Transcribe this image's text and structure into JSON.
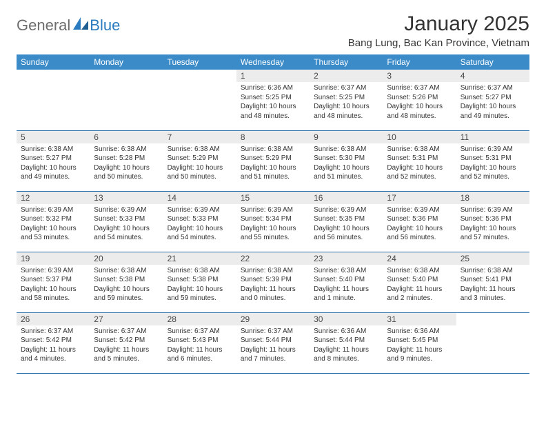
{
  "logo": {
    "general": "General",
    "blue": "Blue"
  },
  "title": "January 2025",
  "location": "Bang Lung, Bac Kan Province, Vietnam",
  "colors": {
    "header_bg": "#3b8bc8",
    "header_text": "#ffffff",
    "row_border": "#2f6ea8",
    "daynum_bg": "#ececec",
    "daynum_text": "#474747",
    "body_text": "#333333",
    "logo_gray": "#6d6d6d",
    "logo_blue": "#2a7bbf",
    "page_bg": "#ffffff"
  },
  "fonts": {
    "title_size": 30,
    "location_size": 15,
    "dayhead_size": 12,
    "daynum_size": 12,
    "body_size": 10
  },
  "day_headers": [
    "Sunday",
    "Monday",
    "Tuesday",
    "Wednesday",
    "Thursday",
    "Friday",
    "Saturday"
  ],
  "weeks": [
    [
      {
        "n": "",
        "sr": "",
        "ss": "",
        "dl": ""
      },
      {
        "n": "",
        "sr": "",
        "ss": "",
        "dl": ""
      },
      {
        "n": "",
        "sr": "",
        "ss": "",
        "dl": ""
      },
      {
        "n": "1",
        "sr": "Sunrise: 6:36 AM",
        "ss": "Sunset: 5:25 PM",
        "dl": "Daylight: 10 hours and 48 minutes."
      },
      {
        "n": "2",
        "sr": "Sunrise: 6:37 AM",
        "ss": "Sunset: 5:25 PM",
        "dl": "Daylight: 10 hours and 48 minutes."
      },
      {
        "n": "3",
        "sr": "Sunrise: 6:37 AM",
        "ss": "Sunset: 5:26 PM",
        "dl": "Daylight: 10 hours and 48 minutes."
      },
      {
        "n": "4",
        "sr": "Sunrise: 6:37 AM",
        "ss": "Sunset: 5:27 PM",
        "dl": "Daylight: 10 hours and 49 minutes."
      }
    ],
    [
      {
        "n": "5",
        "sr": "Sunrise: 6:38 AM",
        "ss": "Sunset: 5:27 PM",
        "dl": "Daylight: 10 hours and 49 minutes."
      },
      {
        "n": "6",
        "sr": "Sunrise: 6:38 AM",
        "ss": "Sunset: 5:28 PM",
        "dl": "Daylight: 10 hours and 50 minutes."
      },
      {
        "n": "7",
        "sr": "Sunrise: 6:38 AM",
        "ss": "Sunset: 5:29 PM",
        "dl": "Daylight: 10 hours and 50 minutes."
      },
      {
        "n": "8",
        "sr": "Sunrise: 6:38 AM",
        "ss": "Sunset: 5:29 PM",
        "dl": "Daylight: 10 hours and 51 minutes."
      },
      {
        "n": "9",
        "sr": "Sunrise: 6:38 AM",
        "ss": "Sunset: 5:30 PM",
        "dl": "Daylight: 10 hours and 51 minutes."
      },
      {
        "n": "10",
        "sr": "Sunrise: 6:38 AM",
        "ss": "Sunset: 5:31 PM",
        "dl": "Daylight: 10 hours and 52 minutes."
      },
      {
        "n": "11",
        "sr": "Sunrise: 6:39 AM",
        "ss": "Sunset: 5:31 PM",
        "dl": "Daylight: 10 hours and 52 minutes."
      }
    ],
    [
      {
        "n": "12",
        "sr": "Sunrise: 6:39 AM",
        "ss": "Sunset: 5:32 PM",
        "dl": "Daylight: 10 hours and 53 minutes."
      },
      {
        "n": "13",
        "sr": "Sunrise: 6:39 AM",
        "ss": "Sunset: 5:33 PM",
        "dl": "Daylight: 10 hours and 54 minutes."
      },
      {
        "n": "14",
        "sr": "Sunrise: 6:39 AM",
        "ss": "Sunset: 5:33 PM",
        "dl": "Daylight: 10 hours and 54 minutes."
      },
      {
        "n": "15",
        "sr": "Sunrise: 6:39 AM",
        "ss": "Sunset: 5:34 PM",
        "dl": "Daylight: 10 hours and 55 minutes."
      },
      {
        "n": "16",
        "sr": "Sunrise: 6:39 AM",
        "ss": "Sunset: 5:35 PM",
        "dl": "Daylight: 10 hours and 56 minutes."
      },
      {
        "n": "17",
        "sr": "Sunrise: 6:39 AM",
        "ss": "Sunset: 5:36 PM",
        "dl": "Daylight: 10 hours and 56 minutes."
      },
      {
        "n": "18",
        "sr": "Sunrise: 6:39 AM",
        "ss": "Sunset: 5:36 PM",
        "dl": "Daylight: 10 hours and 57 minutes."
      }
    ],
    [
      {
        "n": "19",
        "sr": "Sunrise: 6:39 AM",
        "ss": "Sunset: 5:37 PM",
        "dl": "Daylight: 10 hours and 58 minutes."
      },
      {
        "n": "20",
        "sr": "Sunrise: 6:38 AM",
        "ss": "Sunset: 5:38 PM",
        "dl": "Daylight: 10 hours and 59 minutes."
      },
      {
        "n": "21",
        "sr": "Sunrise: 6:38 AM",
        "ss": "Sunset: 5:38 PM",
        "dl": "Daylight: 10 hours and 59 minutes."
      },
      {
        "n": "22",
        "sr": "Sunrise: 6:38 AM",
        "ss": "Sunset: 5:39 PM",
        "dl": "Daylight: 11 hours and 0 minutes."
      },
      {
        "n": "23",
        "sr": "Sunrise: 6:38 AM",
        "ss": "Sunset: 5:40 PM",
        "dl": "Daylight: 11 hours and 1 minute."
      },
      {
        "n": "24",
        "sr": "Sunrise: 6:38 AM",
        "ss": "Sunset: 5:40 PM",
        "dl": "Daylight: 11 hours and 2 minutes."
      },
      {
        "n": "25",
        "sr": "Sunrise: 6:38 AM",
        "ss": "Sunset: 5:41 PM",
        "dl": "Daylight: 11 hours and 3 minutes."
      }
    ],
    [
      {
        "n": "26",
        "sr": "Sunrise: 6:37 AM",
        "ss": "Sunset: 5:42 PM",
        "dl": "Daylight: 11 hours and 4 minutes."
      },
      {
        "n": "27",
        "sr": "Sunrise: 6:37 AM",
        "ss": "Sunset: 5:42 PM",
        "dl": "Daylight: 11 hours and 5 minutes."
      },
      {
        "n": "28",
        "sr": "Sunrise: 6:37 AM",
        "ss": "Sunset: 5:43 PM",
        "dl": "Daylight: 11 hours and 6 minutes."
      },
      {
        "n": "29",
        "sr": "Sunrise: 6:37 AM",
        "ss": "Sunset: 5:44 PM",
        "dl": "Daylight: 11 hours and 7 minutes."
      },
      {
        "n": "30",
        "sr": "Sunrise: 6:36 AM",
        "ss": "Sunset: 5:44 PM",
        "dl": "Daylight: 11 hours and 8 minutes."
      },
      {
        "n": "31",
        "sr": "Sunrise: 6:36 AM",
        "ss": "Sunset: 5:45 PM",
        "dl": "Daylight: 11 hours and 9 minutes."
      },
      {
        "n": "",
        "sr": "",
        "ss": "",
        "dl": ""
      }
    ]
  ]
}
